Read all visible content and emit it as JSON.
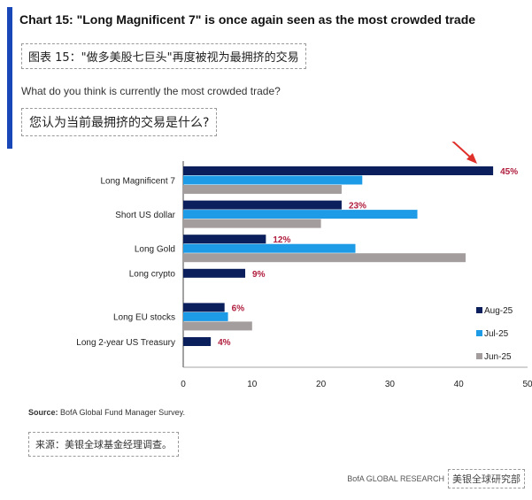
{
  "header": {
    "title_en": "Chart 15: \"Long Magnificent 7\" is once again seen as the most crowded trade",
    "title_cn": "图表 15：\"做多美股七巨头\"再度被视为最拥挤的交易",
    "question_en": "What do you think is currently the most crowded trade?",
    "question_cn": "您认为当前最拥挤的交易是什么?"
  },
  "chart_data": {
    "type": "bar",
    "orientation": "horizontal",
    "categories": [
      "Long Magnificent 7",
      "Short US dollar",
      "Long Gold",
      "Long crypto",
      "Long EU stocks",
      "Long 2-year US Treasury"
    ],
    "series": [
      {
        "name": "Aug-25",
        "color": "#0b1f5c",
        "values": [
          45,
          23,
          12,
          9,
          6,
          4
        ]
      },
      {
        "name": "Jul-25",
        "color": "#1e9be6",
        "values": [
          26,
          34,
          25,
          null,
          6.5,
          null
        ]
      },
      {
        "name": "Jun-25",
        "color": "#a39d9d",
        "values": [
          23,
          20,
          41,
          null,
          10,
          null
        ]
      }
    ],
    "data_labels": [
      "45%",
      "23%",
      "12%",
      "9%",
      "6%",
      "4%"
    ],
    "label_color": "#b01c3c",
    "xlim": [
      0,
      50
    ],
    "xticks": [
      "0",
      "10",
      "20",
      "30",
      "40",
      "50"
    ],
    "xlabel": "",
    "ylabel": "",
    "grid": false,
    "legend_position": "right",
    "annotation": "red arrow pointing to Long Magnificent 7 Aug-25 bar",
    "annotation_color": "#e0302a"
  },
  "source": {
    "label": "Source:",
    "text": "BofA Global Fund Manager Survey.",
    "cn": "来源：美银全球基金经理调查。"
  },
  "footer": {
    "brand_en": "BofA GLOBAL RESEARCH",
    "brand_cn": "美银全球研究部"
  }
}
